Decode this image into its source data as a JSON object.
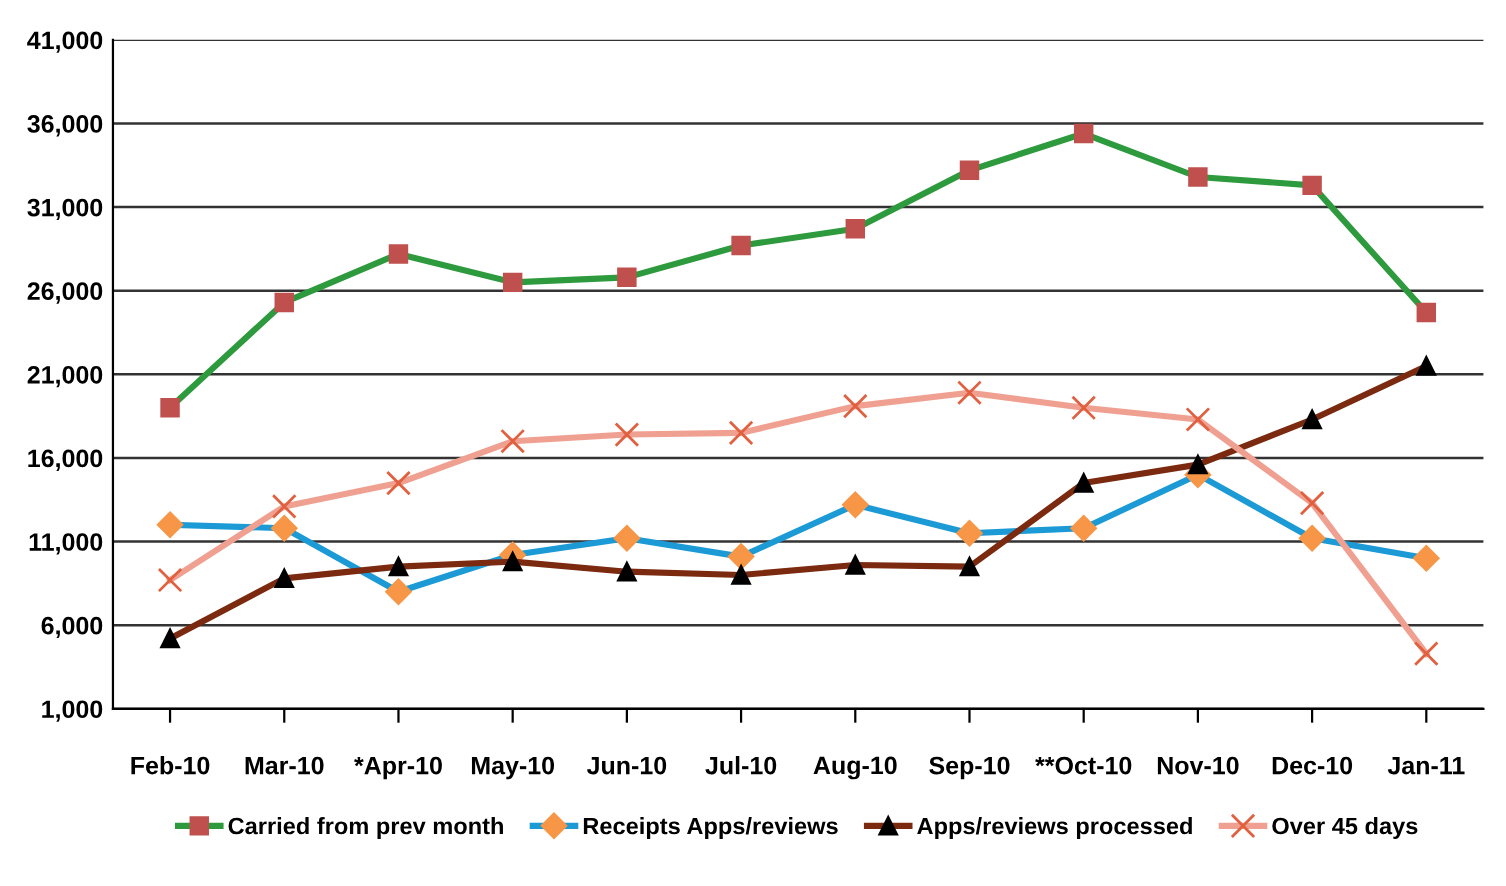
{
  "chart_data": {
    "type": "line",
    "categories": [
      "Feb-10",
      "Mar-10",
      "*Apr-10",
      "May-10",
      "Jun-10",
      "Jul-10",
      "Aug-10",
      "Sep-10",
      "**Oct-10",
      "Nov-10",
      "Dec-10",
      "Jan-11"
    ],
    "series": [
      {
        "name": "Carried from prev month",
        "color": "#2e9a3e",
        "marker": "square",
        "values": [
          19000,
          25300,
          28200,
          26500,
          26800,
          28700,
          29700,
          33200,
          35400,
          32800,
          32300,
          24700
        ]
      },
      {
        "name": "Receipts Apps/reviews",
        "color": "#1b9ad6",
        "marker": "diamond",
        "values": [
          12000,
          11800,
          8000,
          10200,
          11200,
          10100,
          13200,
          11500,
          11800,
          15000,
          11200,
          10000
        ]
      },
      {
        "name": "Apps/reviews processed",
        "color": "#7b2a10",
        "marker": "triangle",
        "values": [
          5200,
          8800,
          9500,
          9800,
          9200,
          9000,
          9600,
          9500,
          14500,
          15600,
          18300,
          21500
        ]
      },
      {
        "name": "Over 45 days",
        "color": "#f0a090",
        "marker": "cross",
        "values": [
          8700,
          13100,
          14500,
          17000,
          17400,
          17500,
          19100,
          19900,
          19000,
          18300,
          13300,
          4300
        ]
      }
    ],
    "ylim": [
      1000,
      41000
    ],
    "yticks": [
      {
        "value": 1000,
        "label": "1,000"
      },
      {
        "value": 6000,
        "label": "6,000"
      },
      {
        "value": 11000,
        "label": "11,000"
      },
      {
        "value": 16000,
        "label": "16,000"
      },
      {
        "value": 21000,
        "label": "21,000"
      },
      {
        "value": 26000,
        "label": "26,000"
      },
      {
        "value": 31000,
        "label": "31,000"
      },
      {
        "value": 36000,
        "label": "36,000"
      },
      {
        "value": 41000,
        "label": "41,000"
      }
    ],
    "grid": "y",
    "legend": "bottom",
    "line_style": "solid"
  }
}
